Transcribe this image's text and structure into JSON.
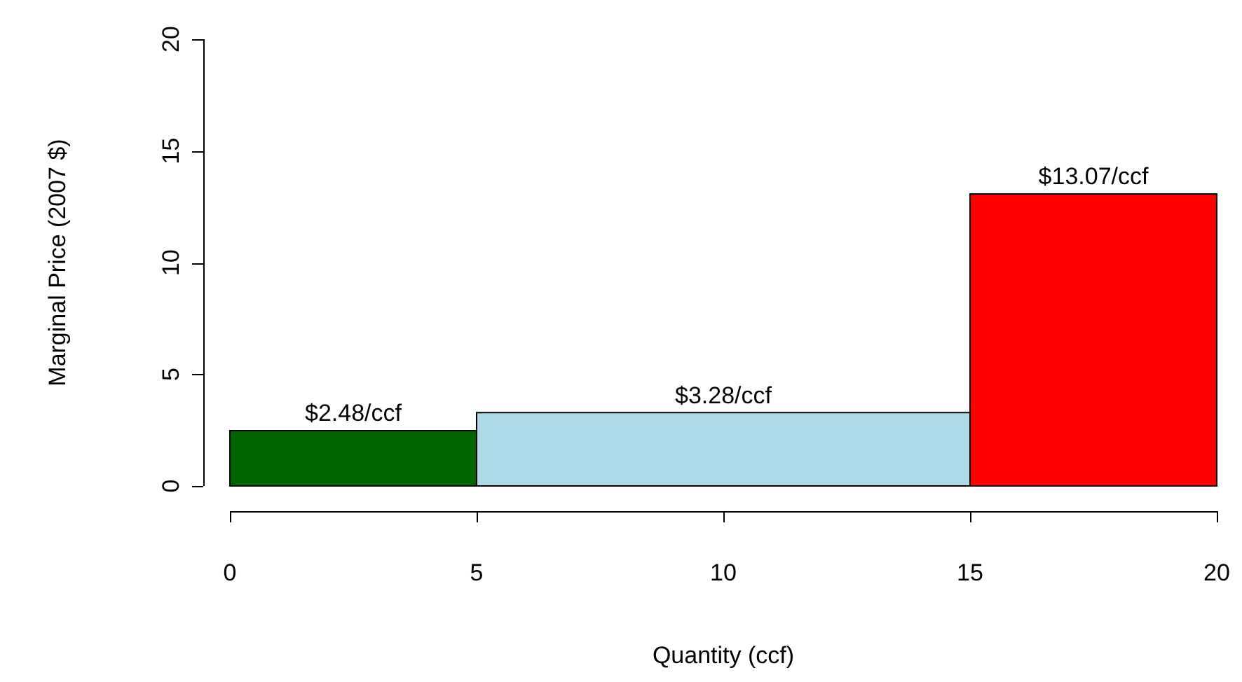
{
  "chart_data": {
    "type": "histogram",
    "xlabel": "Quantity (ccf)",
    "ylabel": "Marginal Price (2007 $)",
    "bins": [
      0,
      5,
      15,
      20
    ],
    "values": [
      2.48,
      3.28,
      13.07
    ],
    "colors": [
      "#006400",
      "#add8e6",
      "#ff0000"
    ],
    "value_labels": [
      "$2.48/ccf",
      "$3.28/ccf",
      "$13.07/ccf"
    ],
    "xlim": [
      0,
      20
    ],
    "ylim": [
      0,
      20
    ],
    "xticks": [
      0,
      5,
      10,
      15,
      20
    ],
    "yticks": [
      0,
      5,
      10,
      15,
      20
    ]
  }
}
